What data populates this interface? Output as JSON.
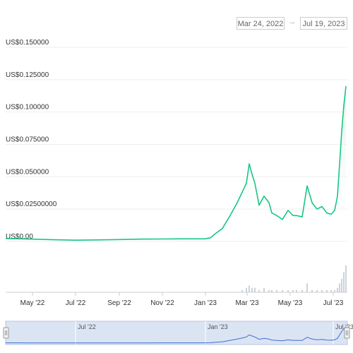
{
  "range_selector": {
    "from": "Mar 24, 2022",
    "to": "Jul 19, 2023",
    "arrow": "→"
  },
  "colors": {
    "line": "#16c784",
    "area_top": "#d6f5e6",
    "volume": "#cbd2dc",
    "navigator_fill": "#dbe4f3",
    "navigator_line": "#3b6fd4"
  },
  "chart_data": {
    "type": "line",
    "ylim": [
      0,
      0.15
    ],
    "y_ticks": [
      {
        "value": 0,
        "label": "US$0.00"
      },
      {
        "value": 0.025,
        "label": "US$0.02500000"
      },
      {
        "value": 0.05,
        "label": "US$0.050000"
      },
      {
        "value": 0.075,
        "label": "US$0.075000"
      },
      {
        "value": 0.1,
        "label": "US$0.100000"
      },
      {
        "value": 0.125,
        "label": "US$0.125000"
      },
      {
        "value": 0.15,
        "label": "US$0.150000"
      }
    ],
    "x_ticks": [
      "May '22",
      "Jul '22",
      "Sep '22",
      "Nov '22",
      "Jan '23",
      "Mar '23",
      "May '23",
      "Jul '23"
    ],
    "navigator_ticks": [
      "Jul '22",
      "Jan '23",
      "Jul '23"
    ],
    "x": [
      "2022-03-24",
      "2022-04-15",
      "2022-05-01",
      "2022-06-01",
      "2022-07-01",
      "2022-08-01",
      "2022-09-01",
      "2022-10-01",
      "2022-11-01",
      "2022-12-01",
      "2022-12-31",
      "2023-01-08",
      "2023-01-15",
      "2023-01-25",
      "2023-02-05",
      "2023-02-15",
      "2023-02-22",
      "2023-02-28",
      "2023-03-04",
      "2023-03-08",
      "2023-03-12",
      "2023-03-18",
      "2023-03-25",
      "2023-04-01",
      "2023-04-05",
      "2023-04-12",
      "2023-04-20",
      "2023-04-28",
      "2023-05-05",
      "2023-05-10",
      "2023-05-18",
      "2023-05-25",
      "2023-06-01",
      "2023-06-08",
      "2023-06-15",
      "2023-06-22",
      "2023-06-28",
      "2023-07-03",
      "2023-07-07",
      "2023-07-10",
      "2023-07-13",
      "2023-07-16",
      "2023-07-19"
    ],
    "values": [
      0.0022,
      0.002,
      0.0018,
      0.0013,
      0.001,
      0.0012,
      0.0015,
      0.0018,
      0.0019,
      0.002,
      0.002,
      0.0028,
      0.006,
      0.01,
      0.02,
      0.03,
      0.038,
      0.045,
      0.06,
      0.052,
      0.045,
      0.028,
      0.035,
      0.03,
      0.022,
      0.02,
      0.017,
      0.024,
      0.02,
      0.02,
      0.019,
      0.043,
      0.03,
      0.025,
      0.027,
      0.022,
      0.021,
      0.024,
      0.035,
      0.06,
      0.085,
      0.105,
      0.12
    ],
    "volume_values": [
      0,
      0,
      0,
      0,
      0,
      0,
      0,
      0,
      0,
      0,
      0,
      0,
      0,
      0,
      0,
      0,
      1,
      2,
      3,
      2,
      2,
      1,
      2,
      1,
      1,
      1,
      1,
      1,
      1,
      1,
      1,
      4,
      1,
      1,
      1,
      1,
      1,
      1,
      2,
      4,
      6,
      9,
      12
    ]
  }
}
